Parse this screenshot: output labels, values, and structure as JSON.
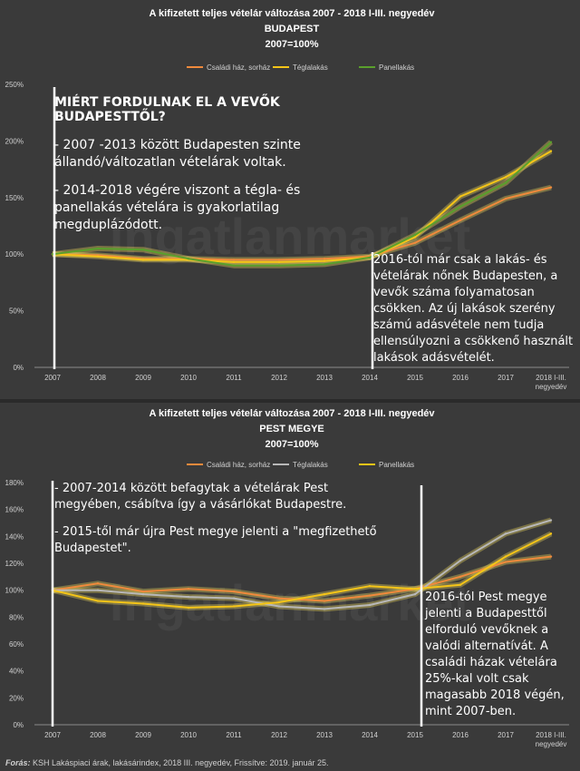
{
  "top_chart": {
    "title_lines": [
      "A kifizetett teljes vételár változása 2007 - 2018 I-III. negyedév",
      "BUDAPEST",
      "2007=100%"
    ],
    "legend": [
      {
        "name": "Családi ház, sorház",
        "color": "#f08a3c"
      },
      {
        "name": "Téglalakás",
        "color": "#f5c518"
      },
      {
        "name": "Panellakás",
        "color": "#5aa02c"
      }
    ],
    "annotation_heading": "MIÉRT FORDULNAK EL A VEVŐK BUDAPESTTŐL?",
    "annotation_points": [
      "- 2007 -2013 között Budapesten szinte állandó/változatlan vételárak voltak.",
      "- 2014-2018 végére viszont a tégla- és panellakás vételára is gyakorlatilag megduplázódott."
    ],
    "annotation_right": "2016-tól már csak a lakás- és vételárak nőnek Budapesten, a vevők száma folyamatosan csökken. Az új lakások szerény számú adásvétele nem tudja ellensúlyozni a csökkenő használt lakások adásvételét.",
    "watermark": "ingatlanmarket"
  },
  "bottom_chart": {
    "title_lines": [
      "A kifizetett teljes vételár változása 2007 - 2018 I-III. negyedév",
      "PEST MEGYE",
      "2007=100%"
    ],
    "legend": [
      {
        "name": "Családi ház, sorház",
        "color": "#f08a3c"
      },
      {
        "name": "Téglalakás",
        "color": "#b8b8b8"
      },
      {
        "name": "Panellakás",
        "color": "#f5c518"
      }
    ],
    "annotation_points": [
      "- 2007-2014 között befagytak a vételárak Pest megyében, csábítva így a vásárlókat Budapestre.",
      "- 2015-től már újra Pest megye jelenti a \"megfizethető Budapestet\"."
    ],
    "annotation_right": "2016-tól Pest megye jelenti a Budapesttől elforduló vevőknek a valódi alternatívát. A családi házak vételára 25%-kal volt csak magasabb 2018 végén, mint 2007-ben.",
    "watermark": "ingatlanmarket"
  },
  "source": {
    "label": "Forás:",
    "text": " KSH Lakáspiaci árak, lakásárindex, 2018 III. negyedév, Frissítve: 2019. január 25."
  },
  "chart_data": [
    {
      "type": "line",
      "title": "A kifizetett teljes vételár változása 2007 - 2018 I-III. negyedév — BUDAPEST — 2007=100%",
      "categories": [
        "2007",
        "2008",
        "2009",
        "2010",
        "2011",
        "2012",
        "2013",
        "2014",
        "2015",
        "2016",
        "2017",
        "2018 I-III. negyedév"
      ],
      "ylim": [
        0,
        250
      ],
      "yticks": [
        0,
        50,
        100,
        150,
        200,
        250
      ],
      "ytick_suffix": "%",
      "grid": false,
      "legend_position": "top",
      "series": [
        {
          "name": "Családi ház, sorház",
          "color": "#f08a3c",
          "values": [
            100,
            99,
            96,
            96,
            95,
            95,
            96,
            98,
            110,
            130,
            149,
            159
          ]
        },
        {
          "name": "Téglalakás",
          "color": "#f5c518",
          "values": [
            100,
            98,
            95,
            95,
            93,
            93,
            94,
            97,
            115,
            151,
            168,
            191
          ]
        },
        {
          "name": "Panellakás",
          "color": "#5aa02c",
          "values": [
            100,
            105,
            104,
            96,
            90,
            90,
            91,
            97,
            117,
            142,
            163,
            199
          ]
        }
      ]
    },
    {
      "type": "line",
      "title": "A kifizetett teljes vételár változása 2007 - 2018 I-III. negyedév — PEST MEGYE — 2007=100%",
      "categories": [
        "2007",
        "2008",
        "2009",
        "2010",
        "2011",
        "2012",
        "2013",
        "2014",
        "2015",
        "2016",
        "2017",
        "2018 I-III. negyedév"
      ],
      "ylim": [
        0,
        180
      ],
      "yticks": [
        0,
        20,
        40,
        60,
        80,
        100,
        120,
        140,
        160,
        180
      ],
      "ytick_suffix": "%",
      "grid": false,
      "legend_position": "top",
      "series": [
        {
          "name": "Családi ház, sorház",
          "color": "#f08a3c",
          "values": [
            100,
            105,
            99,
            101,
            99,
            94,
            92,
            96,
            101,
            110,
            121,
            125
          ]
        },
        {
          "name": "Téglalakás",
          "color": "#b8b8b8",
          "values": [
            100,
            100,
            97,
            95,
            94,
            88,
            86,
            89,
            97,
            122,
            142,
            152
          ]
        },
        {
          "name": "Panellakás",
          "color": "#f5c518",
          "values": [
            100,
            92,
            90,
            87,
            88,
            91,
            97,
            103,
            101,
            104,
            125,
            142
          ]
        }
      ]
    }
  ]
}
